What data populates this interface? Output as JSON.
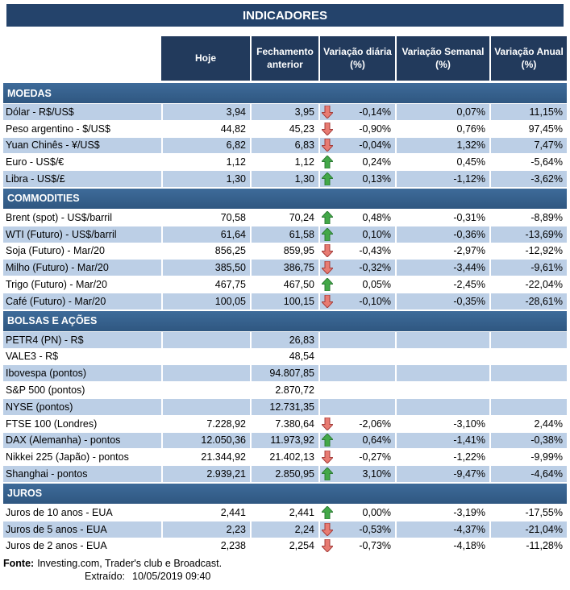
{
  "title": "INDICADORES",
  "columns": [
    "Hoje",
    "Fechamento anterior",
    "Variação diária (%)",
    "Variação Semanal (%)",
    "Variação Anual (%)"
  ],
  "sections": [
    {
      "name": "MOEDAS",
      "rows": [
        {
          "label": "Dólar - R$/US$",
          "hoje": "3,94",
          "fechamento": "3,95",
          "arrow": "down",
          "diaria": "-0,14%",
          "semanal": "0,07%",
          "anual": "11,15%"
        },
        {
          "label": "Peso argentino - $/US$",
          "hoje": "44,82",
          "fechamento": "45,23",
          "arrow": "down",
          "diaria": "-0,90%",
          "semanal": "0,76%",
          "anual": "97,45%"
        },
        {
          "label": "Yuan Chinês - ¥/US$",
          "hoje": "6,82",
          "fechamento": "6,83",
          "arrow": "down",
          "diaria": "-0,04%",
          "semanal": "1,32%",
          "anual": "7,47%"
        },
        {
          "label": "Euro - US$/€",
          "hoje": "1,12",
          "fechamento": "1,12",
          "arrow": "up",
          "diaria": "0,24%",
          "semanal": "0,45%",
          "anual": "-5,64%"
        },
        {
          "label": "Libra - US$/£",
          "hoje": "1,30",
          "fechamento": "1,30",
          "arrow": "up",
          "diaria": "0,13%",
          "semanal": "-1,12%",
          "anual": "-3,62%"
        }
      ]
    },
    {
      "name": "COMMODITIES",
      "rows": [
        {
          "label": "Brent (spot) - US$/barril",
          "hoje": "70,58",
          "fechamento": "70,24",
          "arrow": "up",
          "diaria": "0,48%",
          "semanal": "-0,31%",
          "anual": "-8,89%"
        },
        {
          "label": "WTI (Futuro) - US$/barril",
          "hoje": "61,64",
          "fechamento": "61,58",
          "arrow": "up",
          "diaria": "0,10%",
          "semanal": "-0,36%",
          "anual": "-13,69%"
        },
        {
          "label": "Soja (Futuro) - Mar/20",
          "hoje": "856,25",
          "fechamento": "859,95",
          "arrow": "down",
          "diaria": "-0,43%",
          "semanal": "-2,97%",
          "anual": "-12,92%"
        },
        {
          "label": "Milho (Futuro) - Mar/20",
          "hoje": "385,50",
          "fechamento": "386,75",
          "arrow": "down",
          "diaria": "-0,32%",
          "semanal": "-3,44%",
          "anual": "-9,61%"
        },
        {
          "label": "Trigo (Futuro) - Mar/20",
          "hoje": "467,75",
          "fechamento": "467,50",
          "arrow": "up",
          "diaria": "0,05%",
          "semanal": "-2,45%",
          "anual": "-22,04%"
        },
        {
          "label": "Café (Futuro) - Mar/20",
          "hoje": "100,05",
          "fechamento": "100,15",
          "arrow": "down",
          "diaria": "-0,10%",
          "semanal": "-0,35%",
          "anual": "-28,61%"
        }
      ]
    },
    {
      "name": "BOLSAS E AÇÕES",
      "rows": [
        {
          "label": "PETR4 (PN) - R$",
          "hoje": "",
          "fechamento": "26,83",
          "arrow": null,
          "diaria": "",
          "semanal": "",
          "anual": ""
        },
        {
          "label": "VALE3 - R$",
          "hoje": "",
          "fechamento": "48,54",
          "arrow": null,
          "diaria": "",
          "semanal": "",
          "anual": ""
        },
        {
          "label": "Ibovespa (pontos)",
          "hoje": "",
          "fechamento": "94.807,85",
          "arrow": null,
          "diaria": "",
          "semanal": "",
          "anual": ""
        },
        {
          "label": "S&P 500 (pontos)",
          "hoje": "",
          "fechamento": "2.870,72",
          "arrow": null,
          "diaria": "",
          "semanal": "",
          "anual": ""
        },
        {
          "label": "NYSE (pontos)",
          "hoje": "",
          "fechamento": "12.731,35",
          "arrow": null,
          "diaria": "",
          "semanal": "",
          "anual": ""
        },
        {
          "label": "FTSE 100 (Londres)",
          "hoje": "7.228,92",
          "fechamento": "7.380,64",
          "arrow": "down",
          "diaria": "-2,06%",
          "semanal": "-3,10%",
          "anual": "2,44%"
        },
        {
          "label": "DAX (Alemanha) - pontos",
          "hoje": "12.050,36",
          "fechamento": "11.973,92",
          "arrow": "up",
          "diaria": "0,64%",
          "semanal": "-1,41%",
          "anual": "-0,38%"
        },
        {
          "label": "Nikkei 225 (Japão) - pontos",
          "hoje": "21.344,92",
          "fechamento": "21.402,13",
          "arrow": "down",
          "diaria": "-0,27%",
          "semanal": "-1,22%",
          "anual": "-9,99%"
        },
        {
          "label": "Shanghai - pontos",
          "hoje": "2.939,21",
          "fechamento": "2.850,95",
          "arrow": "up",
          "diaria": "3,10%",
          "semanal": "-9,47%",
          "anual": "-4,64%"
        }
      ]
    },
    {
      "name": "JUROS",
      "rows": [
        {
          "label": "Juros de 10 anos - EUA",
          "hoje": "2,441",
          "fechamento": "2,441",
          "arrow": "up",
          "diaria": "0,00%",
          "semanal": "-3,19%",
          "anual": "-17,55%"
        },
        {
          "label": "Juros de 5 anos - EUA",
          "hoje": "2,23",
          "fechamento": "2,24",
          "arrow": "down",
          "diaria": "-0,53%",
          "semanal": "-4,37%",
          "anual": "-21,04%"
        },
        {
          "label": "Juros de 2 anos - EUA",
          "hoje": "2,238",
          "fechamento": "2,254",
          "arrow": "down",
          "diaria": "-0,73%",
          "semanal": "-4,18%",
          "anual": "-11,28%"
        }
      ]
    }
  ],
  "footer": {
    "fonte_label": "Fonte:",
    "fonte_text": "Investing.com, Trader's club e Broadcast.",
    "extraido_label": "Extraído:",
    "extraido_value": "10/05/2019 09:40"
  },
  "icons": {
    "up": "up-arrow-icon",
    "down": "down-arrow-icon"
  },
  "colors": {
    "navy_title": "#24436B",
    "navy_header": "#223A5C",
    "section_blue_light": "#3E6B9A",
    "section_blue_dark": "#2F5781",
    "stripe_blue": "#BCCFE6",
    "arrow_up_fill": "#43A848",
    "arrow_up_stroke": "#2E7D36",
    "arrow_down_fill": "#E87B72",
    "arrow_down_stroke": "#A43D3B"
  }
}
